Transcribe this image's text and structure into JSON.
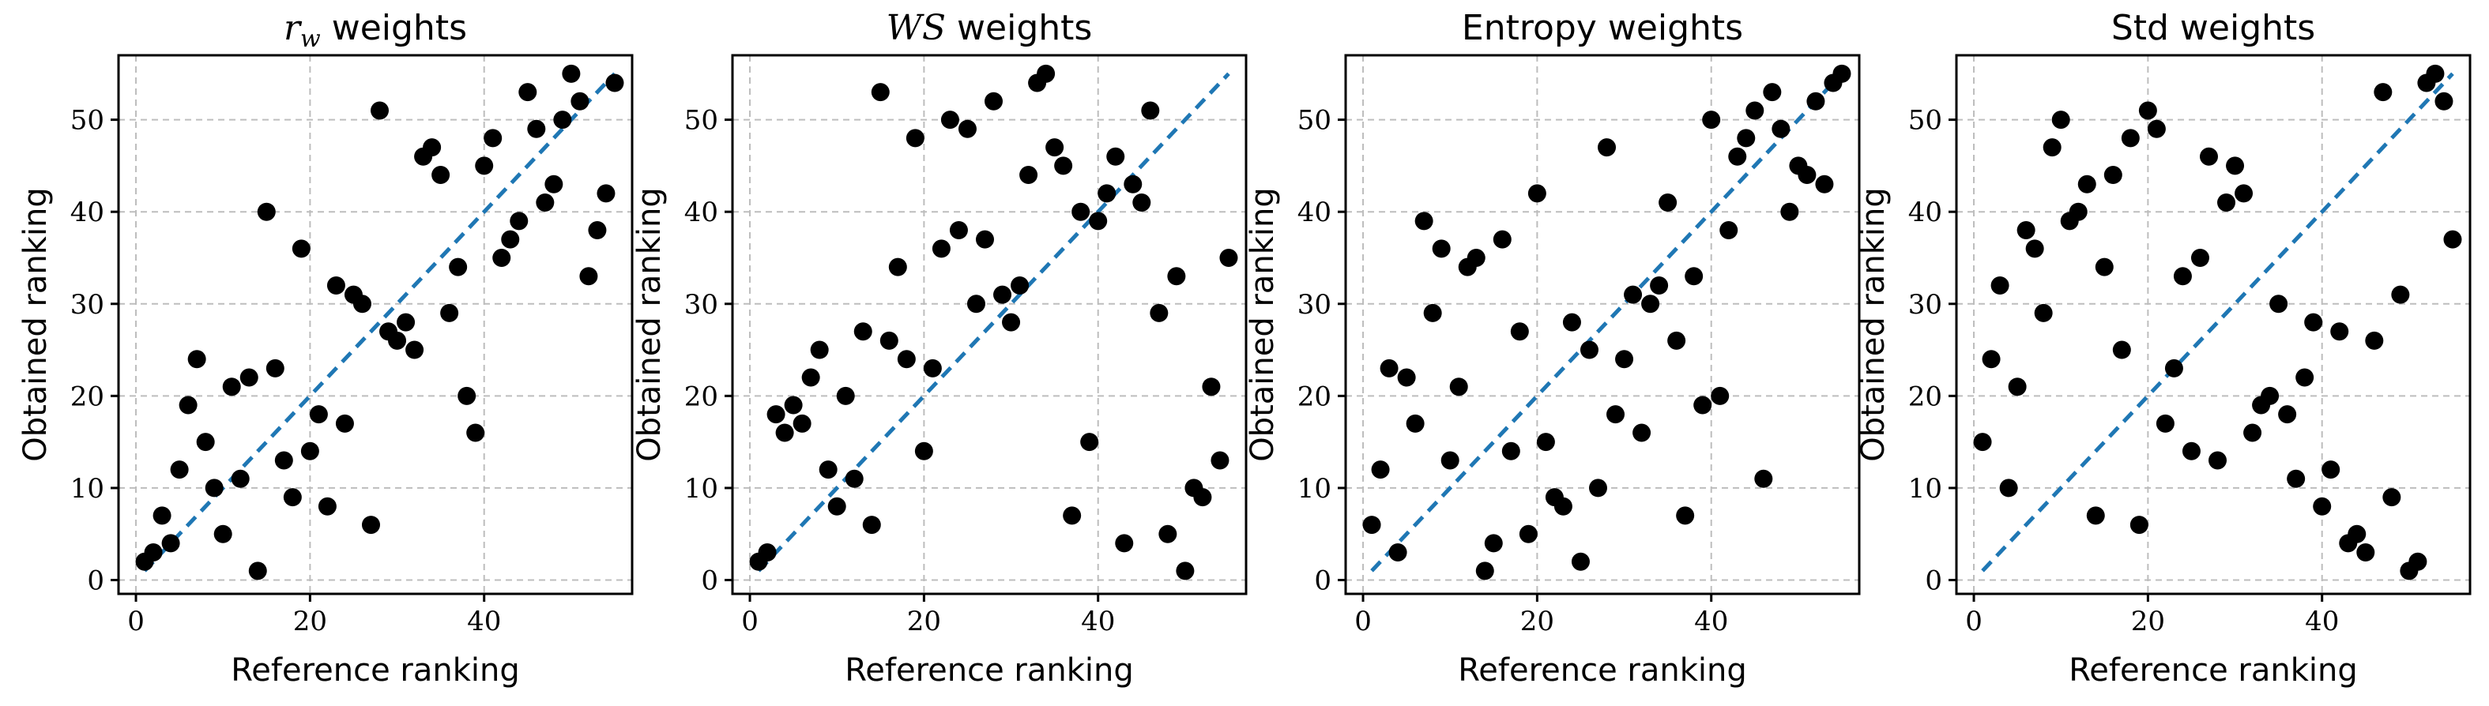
{
  "chart_data": [
    {
      "type": "scatter",
      "title_math": "r",
      "title_math_sub": "w",
      "title_text": " weights",
      "xlabel": "Reference ranking",
      "ylabel": "Obtained ranking",
      "xlim": [
        -2,
        57
      ],
      "ylim": [
        -1.5,
        57
      ],
      "xticks": [
        0,
        20,
        40
      ],
      "yticks": [
        0,
        10,
        20,
        30,
        40,
        50
      ],
      "grid": true,
      "reference_line": {
        "x": [
          1,
          55
        ],
        "y": [
          1,
          55
        ],
        "color": "#1f77b4",
        "style": "dashed"
      },
      "points": [
        [
          1,
          2
        ],
        [
          2,
          3
        ],
        [
          3,
          7
        ],
        [
          4,
          4
        ],
        [
          5,
          12
        ],
        [
          6,
          19
        ],
        [
          7,
          24
        ],
        [
          8,
          15
        ],
        [
          9,
          10
        ],
        [
          10,
          5
        ],
        [
          11,
          21
        ],
        [
          12,
          11
        ],
        [
          13,
          22
        ],
        [
          14,
          1
        ],
        [
          15,
          40
        ],
        [
          16,
          23
        ],
        [
          17,
          13
        ],
        [
          18,
          9
        ],
        [
          19,
          36
        ],
        [
          20,
          14
        ],
        [
          21,
          18
        ],
        [
          22,
          8
        ],
        [
          23,
          32
        ],
        [
          24,
          17
        ],
        [
          25,
          31
        ],
        [
          26,
          30
        ],
        [
          27,
          6
        ],
        [
          28,
          51
        ],
        [
          29,
          27
        ],
        [
          30,
          26
        ],
        [
          31,
          28
        ],
        [
          32,
          25
        ],
        [
          33,
          46
        ],
        [
          34,
          47
        ],
        [
          35,
          44
        ],
        [
          36,
          29
        ],
        [
          37,
          34
        ],
        [
          38,
          20
        ],
        [
          39,
          16
        ],
        [
          40,
          45
        ],
        [
          41,
          48
        ],
        [
          42,
          35
        ],
        [
          43,
          37
        ],
        [
          44,
          39
        ],
        [
          45,
          53
        ],
        [
          46,
          49
        ],
        [
          47,
          41
        ],
        [
          48,
          43
        ],
        [
          49,
          50
        ],
        [
          50,
          55
        ],
        [
          51,
          52
        ],
        [
          52,
          33
        ],
        [
          53,
          38
        ],
        [
          54,
          42
        ],
        [
          55,
          54
        ]
      ]
    },
    {
      "type": "scatter",
      "title_math": "WS",
      "title_math_sub": "",
      "title_text": " weights",
      "xlabel": "Reference ranking",
      "ylabel": "Obtained ranking",
      "xlim": [
        -2,
        57
      ],
      "ylim": [
        -1.5,
        57
      ],
      "xticks": [
        0,
        20,
        40
      ],
      "yticks": [
        0,
        10,
        20,
        30,
        40,
        50
      ],
      "grid": true,
      "reference_line": {
        "x": [
          1,
          55
        ],
        "y": [
          1,
          55
        ],
        "color": "#1f77b4",
        "style": "dashed"
      },
      "points": [
        [
          1,
          2
        ],
        [
          2,
          3
        ],
        [
          3,
          18
        ],
        [
          4,
          16
        ],
        [
          5,
          19
        ],
        [
          6,
          17
        ],
        [
          7,
          22
        ],
        [
          8,
          25
        ],
        [
          9,
          12
        ],
        [
          10,
          8
        ],
        [
          11,
          20
        ],
        [
          12,
          11
        ],
        [
          13,
          27
        ],
        [
          14,
          6
        ],
        [
          15,
          53
        ],
        [
          16,
          26
        ],
        [
          17,
          34
        ],
        [
          18,
          24
        ],
        [
          19,
          48
        ],
        [
          20,
          14
        ],
        [
          21,
          23
        ],
        [
          22,
          36
        ],
        [
          23,
          50
        ],
        [
          24,
          38
        ],
        [
          25,
          49
        ],
        [
          26,
          30
        ],
        [
          27,
          37
        ],
        [
          28,
          52
        ],
        [
          29,
          31
        ],
        [
          30,
          28
        ],
        [
          31,
          32
        ],
        [
          32,
          44
        ],
        [
          33,
          54
        ],
        [
          34,
          55
        ],
        [
          35,
          47
        ],
        [
          36,
          45
        ],
        [
          37,
          7
        ],
        [
          38,
          40
        ],
        [
          39,
          15
        ],
        [
          40,
          39
        ],
        [
          41,
          42
        ],
        [
          42,
          46
        ],
        [
          43,
          4
        ],
        [
          44,
          43
        ],
        [
          45,
          41
        ],
        [
          46,
          51
        ],
        [
          47,
          29
        ],
        [
          48,
          5
        ],
        [
          49,
          33
        ],
        [
          50,
          1
        ],
        [
          51,
          10
        ],
        [
          52,
          9
        ],
        [
          53,
          21
        ],
        [
          54,
          13
        ],
        [
          55,
          35
        ]
      ]
    },
    {
      "type": "scatter",
      "title_math": "",
      "title_math_sub": "",
      "title_text": "Entropy weights",
      "xlabel": "Reference ranking",
      "ylabel": "Obtained ranking",
      "xlim": [
        -2,
        57
      ],
      "ylim": [
        -1.5,
        57
      ],
      "xticks": [
        0,
        20,
        40
      ],
      "yticks": [
        0,
        10,
        20,
        30,
        40,
        50
      ],
      "grid": true,
      "reference_line": {
        "x": [
          1,
          55
        ],
        "y": [
          1,
          55
        ],
        "color": "#1f77b4",
        "style": "dashed"
      },
      "points": [
        [
          1,
          6
        ],
        [
          2,
          12
        ],
        [
          3,
          23
        ],
        [
          4,
          3
        ],
        [
          5,
          22
        ],
        [
          6,
          17
        ],
        [
          7,
          39
        ],
        [
          8,
          29
        ],
        [
          9,
          36
        ],
        [
          10,
          13
        ],
        [
          11,
          21
        ],
        [
          12,
          34
        ],
        [
          13,
          35
        ],
        [
          14,
          1
        ],
        [
          15,
          4
        ],
        [
          16,
          37
        ],
        [
          17,
          14
        ],
        [
          18,
          27
        ],
        [
          19,
          5
        ],
        [
          20,
          42
        ],
        [
          21,
          15
        ],
        [
          22,
          9
        ],
        [
          23,
          8
        ],
        [
          24,
          28
        ],
        [
          25,
          2
        ],
        [
          26,
          25
        ],
        [
          27,
          10
        ],
        [
          28,
          47
        ],
        [
          29,
          18
        ],
        [
          30,
          24
        ],
        [
          31,
          31
        ],
        [
          32,
          16
        ],
        [
          33,
          30
        ],
        [
          34,
          32
        ],
        [
          35,
          41
        ],
        [
          36,
          26
        ],
        [
          37,
          7
        ],
        [
          38,
          33
        ],
        [
          39,
          19
        ],
        [
          40,
          50
        ],
        [
          41,
          20
        ],
        [
          42,
          38
        ],
        [
          43,
          46
        ],
        [
          44,
          48
        ],
        [
          45,
          51
        ],
        [
          46,
          11
        ],
        [
          47,
          53
        ],
        [
          48,
          49
        ],
        [
          49,
          40
        ],
        [
          50,
          45
        ],
        [
          51,
          44
        ],
        [
          52,
          52
        ],
        [
          53,
          43
        ],
        [
          54,
          54
        ],
        [
          55,
          55
        ]
      ]
    },
    {
      "type": "scatter",
      "title_math": "",
      "title_math_sub": "",
      "title_text": "Std weights",
      "xlabel": "Reference ranking",
      "ylabel": "Obtained ranking",
      "xlim": [
        -2,
        57
      ],
      "ylim": [
        -1.5,
        57
      ],
      "xticks": [
        0,
        20,
        40
      ],
      "yticks": [
        0,
        10,
        20,
        30,
        40,
        50
      ],
      "grid": true,
      "reference_line": {
        "x": [
          1,
          55
        ],
        "y": [
          1,
          55
        ],
        "color": "#1f77b4",
        "style": "dashed"
      },
      "points": [
        [
          1,
          15
        ],
        [
          2,
          24
        ],
        [
          3,
          32
        ],
        [
          4,
          10
        ],
        [
          5,
          21
        ],
        [
          6,
          38
        ],
        [
          7,
          36
        ],
        [
          8,
          29
        ],
        [
          9,
          47
        ],
        [
          10,
          50
        ],
        [
          11,
          39
        ],
        [
          12,
          40
        ],
        [
          13,
          43
        ],
        [
          14,
          7
        ],
        [
          15,
          34
        ],
        [
          16,
          44
        ],
        [
          17,
          25
        ],
        [
          18,
          48
        ],
        [
          19,
          6
        ],
        [
          20,
          51
        ],
        [
          21,
          49
        ],
        [
          22,
          17
        ],
        [
          23,
          23
        ],
        [
          24,
          33
        ],
        [
          25,
          14
        ],
        [
          26,
          35
        ],
        [
          27,
          46
        ],
        [
          28,
          13
        ],
        [
          29,
          41
        ],
        [
          30,
          45
        ],
        [
          31,
          42
        ],
        [
          32,
          16
        ],
        [
          33,
          19
        ],
        [
          34,
          20
        ],
        [
          35,
          30
        ],
        [
          36,
          18
        ],
        [
          37,
          11
        ],
        [
          38,
          22
        ],
        [
          39,
          28
        ],
        [
          40,
          8
        ],
        [
          41,
          12
        ],
        [
          42,
          27
        ],
        [
          43,
          4
        ],
        [
          44,
          5
        ],
        [
          45,
          3
        ],
        [
          46,
          26
        ],
        [
          47,
          53
        ],
        [
          48,
          9
        ],
        [
          49,
          31
        ],
        [
          50,
          1
        ],
        [
          51,
          2
        ],
        [
          52,
          54
        ],
        [
          53,
          55
        ],
        [
          54,
          52
        ],
        [
          55,
          37
        ]
      ]
    }
  ]
}
